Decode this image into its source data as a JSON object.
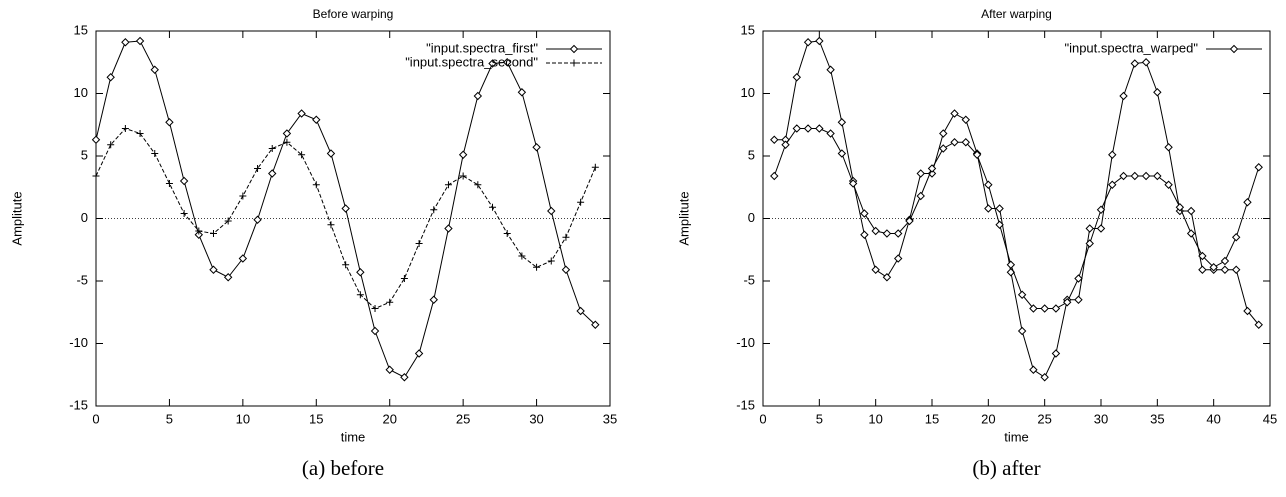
{
  "chart_data": [
    {
      "type": "line",
      "title": "Before warping",
      "xlabel": "time",
      "ylabel": "Amplitute",
      "caption": "(a) before",
      "x": [
        0,
        1,
        2,
        3,
        4,
        5,
        6,
        7,
        8,
        9,
        10,
        11,
        12,
        13,
        14,
        15,
        16,
        17,
        18,
        19,
        20,
        21,
        22,
        23,
        24,
        25,
        26,
        27,
        28,
        29,
        30,
        31,
        32,
        33,
        34
      ],
      "series": [
        {
          "name": "\"input.spectra_first\"",
          "color": "#000000",
          "marker": "diamond",
          "dash": false,
          "values": [
            6.3,
            11.3,
            14.1,
            14.2,
            11.9,
            7.7,
            3.0,
            -1.3,
            -4.1,
            -4.7,
            -3.2,
            -0.1,
            3.6,
            6.8,
            8.4,
            7.9,
            5.2,
            0.8,
            -4.3,
            -9.0,
            -12.1,
            -12.7,
            -10.8,
            -6.5,
            -0.8,
            5.1,
            9.8,
            12.4,
            12.5,
            10.1,
            5.7,
            0.6,
            -4.1,
            -7.4,
            -8.5
          ]
        },
        {
          "name": "\"input.spectra_second\"",
          "color": "#000000",
          "marker": "plus",
          "dash": true,
          "values": [
            3.4,
            5.9,
            7.2,
            6.8,
            5.2,
            2.8,
            0.4,
            -1.0,
            -1.2,
            -0.2,
            1.8,
            4.0,
            5.6,
            6.1,
            5.1,
            2.7,
            -0.5,
            -3.7,
            -6.1,
            -7.2,
            -6.7,
            -4.8,
            -2.0,
            0.7,
            2.7,
            3.4,
            2.7,
            0.9,
            -1.2,
            -3.0,
            -3.9,
            -3.4,
            -1.5,
            1.3,
            4.1
          ]
        }
      ],
      "xlim": [
        0,
        35
      ],
      "ylim": [
        -15,
        15
      ],
      "xticks": [
        0,
        5,
        10,
        15,
        20,
        25,
        30,
        35
      ],
      "yticks": [
        -15,
        -10,
        -5,
        0,
        5,
        10,
        15
      ],
      "zero_line": true,
      "legend": "upper right"
    },
    {
      "type": "line",
      "title": "After warping",
      "xlabel": "time",
      "ylabel": "Amplitute",
      "caption": "(b) after",
      "x": [
        1,
        2,
        3,
        4,
        5,
        6,
        7,
        8,
        9,
        10,
        11,
        12,
        13,
        14,
        15,
        16,
        17,
        18,
        19,
        20,
        21,
        22,
        23,
        24,
        25,
        26,
        27,
        28,
        29,
        30,
        31,
        32,
        33,
        34,
        35,
        36,
        37,
        38,
        39,
        40,
        41,
        42,
        43,
        44
      ],
      "series": [
        {
          "name": "\"input.spectra_warped\"",
          "color": "#000000",
          "marker": "diamond",
          "dash": false,
          "values": [
            6.3,
            6.3,
            11.3,
            14.1,
            14.2,
            11.9,
            7.7,
            3.0,
            -1.3,
            -4.1,
            -4.7,
            -3.2,
            -0.1,
            3.6,
            3.6,
            6.8,
            8.4,
            7.9,
            5.2,
            0.8,
            0.8,
            -4.3,
            -9.0,
            -12.1,
            -12.7,
            -10.8,
            -6.5,
            -6.5,
            -0.8,
            -0.8,
            5.1,
            9.8,
            12.4,
            12.5,
            10.1,
            5.7,
            0.6,
            0.6,
            -4.1,
            -4.1,
            -4.1,
            -4.1,
            -7.4,
            -8.5
          ]
        },
        {
          "color": "#000000",
          "marker": "diamond",
          "dash": false,
          "values": [
            3.4,
            5.9,
            7.2,
            7.2,
            7.2,
            6.8,
            5.2,
            2.8,
            0.4,
            -1.0,
            -1.2,
            -1.2,
            -0.2,
            1.8,
            4.0,
            5.6,
            6.1,
            6.1,
            5.1,
            2.7,
            -0.5,
            -3.7,
            -6.1,
            -7.2,
            -7.2,
            -7.2,
            -6.7,
            -4.8,
            -2.0,
            0.7,
            2.7,
            3.4,
            3.4,
            3.4,
            3.4,
            2.7,
            0.9,
            -1.2,
            -3.0,
            -3.9,
            -3.4,
            -1.5,
            1.3,
            4.1
          ]
        }
      ],
      "xlim": [
        0,
        45
      ],
      "ylim": [
        -15,
        15
      ],
      "xticks": [
        0,
        5,
        10,
        15,
        20,
        25,
        30,
        35,
        40,
        45
      ],
      "yticks": [
        -15,
        -10,
        -5,
        0,
        5,
        10,
        15
      ],
      "zero_line": true,
      "legend": "upper right"
    }
  ]
}
